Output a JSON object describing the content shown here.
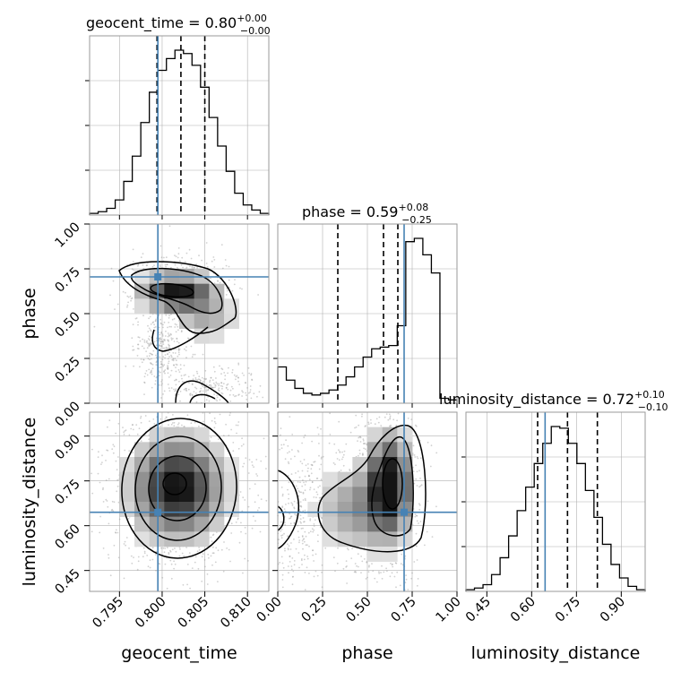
{
  "chart_data": {
    "type": "corner",
    "params": [
      "geocent_time",
      "phase",
      "luminosity_distance"
    ],
    "xlabels": [
      "geocent_time",
      "phase",
      "luminosity_distance"
    ],
    "ylabels": [
      "phase",
      "luminosity_distance"
    ],
    "titles": [
      {
        "name": "geocent_time",
        "median": "0.80",
        "plus": "+0.00",
        "minus": "−0.00",
        "prefix": "geocent_time = 0.80"
      },
      {
        "name": "phase",
        "median": "0.59",
        "plus": "+0.08",
        "minus": "−0.25",
        "prefix": "phase = 0.59"
      },
      {
        "name": "luminosity_distance",
        "median": "0.72",
        "plus": "+0.10",
        "minus": "−0.10",
        "prefix": "luminosity_distance = 0.72"
      }
    ],
    "ranges": {
      "geocent_time": [
        0.7915,
        0.8125
      ],
      "phase": [
        0.0,
        1.0
      ],
      "luminosity_distance": [
        0.38,
        0.98
      ]
    },
    "ticks": {
      "geocent_time": {
        "values": [
          0.795,
          0.8,
          0.805,
          0.81
        ],
        "labels": [
          "0.795",
          "0.800",
          "0.805",
          "0.810"
        ]
      },
      "phase": {
        "values": [
          0.0,
          0.25,
          0.5,
          0.75,
          1.0
        ],
        "labels": [
          "0.00",
          "0.25",
          "0.50",
          "0.75",
          "1.00"
        ]
      },
      "luminosity_distance": {
        "values": [
          0.45,
          0.6,
          0.75,
          0.9
        ],
        "labels": [
          "0.45",
          "0.60",
          "0.75",
          "0.90"
        ]
      }
    },
    "truths": {
      "geocent_time": 0.7995,
      "phase": 0.705,
      "luminosity_distance": 0.645
    },
    "quantiles": {
      "geocent_time": [
        0.7994,
        0.8022,
        0.805
      ],
      "phase": [
        0.335,
        0.59,
        0.67
      ],
      "luminosity_distance": [
        0.62,
        0.72,
        0.82
      ]
    },
    "histograms": {
      "geocent_time": [
        1,
        2,
        4,
        9,
        20,
        35,
        55,
        73,
        86,
        93,
        98,
        96,
        89,
        76,
        58,
        41,
        26,
        13,
        6,
        3,
        1
      ],
      "phase": [
        22,
        14,
        9,
        6,
        5,
        6,
        8,
        11,
        16,
        22,
        28,
        33,
        34,
        35,
        47,
        98,
        100,
        90,
        79,
        3,
        2
      ],
      "luminosity_distance": [
        1,
        2,
        4,
        10,
        20,
        33,
        48,
        62,
        76,
        88,
        98,
        97,
        88,
        76,
        60,
        44,
        28,
        16,
        8,
        3,
        1
      ]
    },
    "grid": true,
    "colors": {
      "truth": "#4682b4",
      "line": "#000000",
      "grid": "#b0b0b0",
      "points": "#9a9a9a"
    }
  }
}
